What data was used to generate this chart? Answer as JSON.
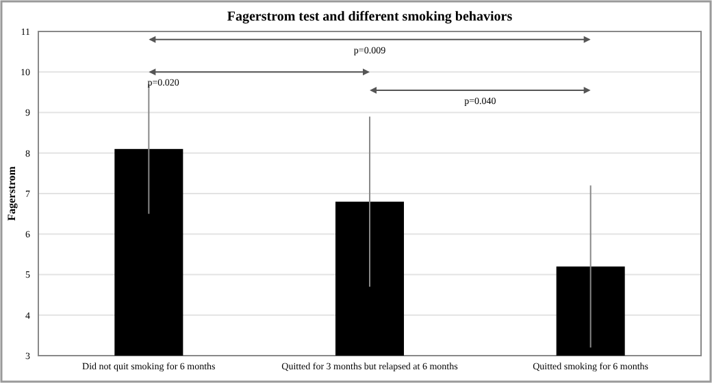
{
  "chart_data": {
    "type": "bar",
    "title": "Fagerstrom test and different smoking behaviors",
    "ylabel": "Fagerstrom",
    "categories": [
      "Did not quit smoking for 6 months",
      "Quitted for 3 months but relapsed at 6 months",
      "Quitted smoking for 6 months"
    ],
    "values": [
      8.1,
      6.8,
      5.2
    ],
    "errors": [
      1.6,
      2.1,
      2.0
    ],
    "color": "#000000",
    "ylim": [
      3,
      11
    ],
    "yticks": [
      3,
      4,
      5,
      6,
      7,
      8,
      9,
      10,
      11
    ],
    "grid": "y",
    "annotations": [
      "p=0.009",
      "p=0.020",
      "p=0.040"
    ]
  }
}
